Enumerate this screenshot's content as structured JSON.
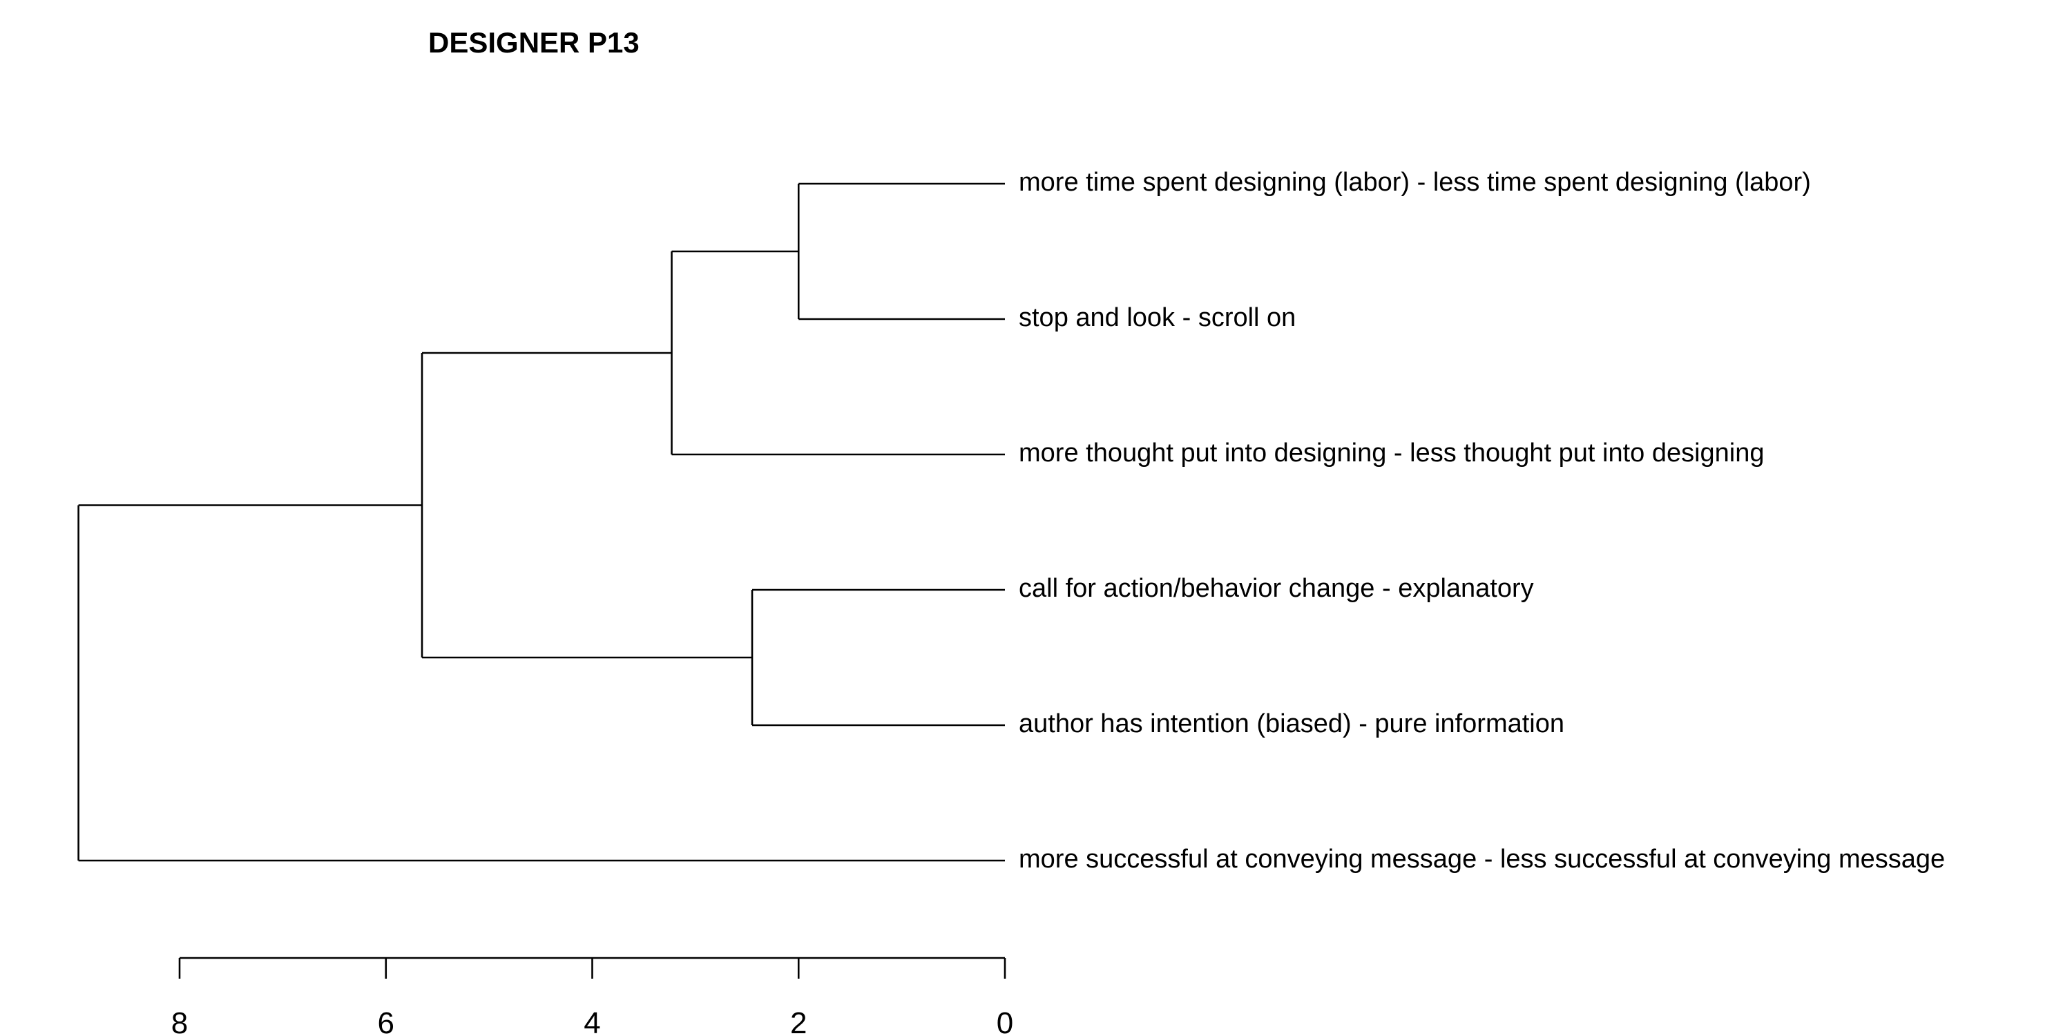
{
  "chart_data": {
    "type": "dendrogram",
    "title": "DESIGNER P13",
    "orientation": "leaves-right",
    "xlim": [
      9,
      0
    ],
    "x_ticks": [
      8,
      6,
      4,
      2,
      0
    ],
    "x_tick_labels": [
      "8",
      "6",
      "4",
      "2",
      "0"
    ],
    "leaves": [
      "more time spent designing (labor) - less time spent designing (labor)",
      "stop and look - scroll on",
      "more thought put into designing - less thought put into designing",
      "call for action/behavior change - explanatory",
      "author has intention (biased) - pure information",
      "more successful at conveying message - less successful at conveying message"
    ],
    "merges": [
      {
        "id": "m1",
        "children": [
          "leaf:0",
          "leaf:1"
        ],
        "height": 2.0
      },
      {
        "id": "m2",
        "children": [
          "m1",
          "leaf:2"
        ],
        "height": 3.23
      },
      {
        "id": "m3",
        "children": [
          "leaf:3",
          "leaf:4"
        ],
        "height": 2.45
      },
      {
        "id": "m4",
        "children": [
          "m2",
          "m3"
        ],
        "height": 5.65
      },
      {
        "id": "m5",
        "children": [
          "m4",
          "leaf:5"
        ],
        "height": 8.98
      }
    ]
  }
}
